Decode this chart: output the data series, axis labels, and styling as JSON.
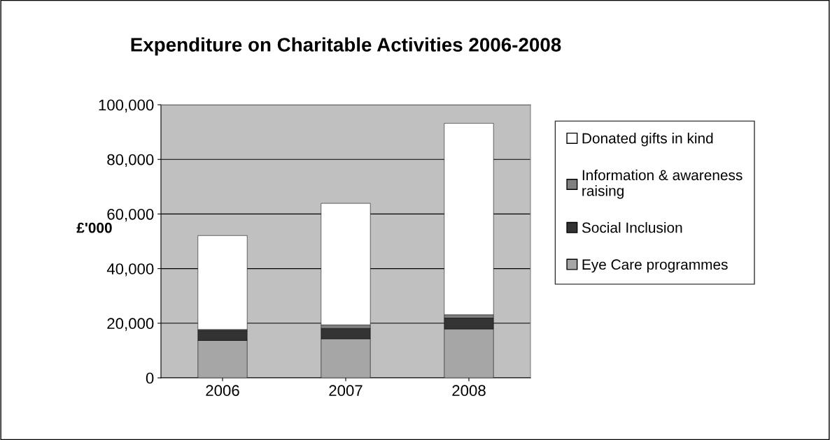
{
  "chart_data": {
    "type": "bar",
    "title": "Expenditure on Charitable Activities 2006-2008",
    "ylabel": "£'000",
    "categories": [
      "2006",
      "2007",
      "2008"
    ],
    "stacked": true,
    "ylim": [
      0,
      100000
    ],
    "yticks": [
      {
        "value": 0,
        "label": "0"
      },
      {
        "value": 20000,
        "label": "20,000"
      },
      {
        "value": 40000,
        "label": "40,000"
      },
      {
        "value": 60000,
        "label": "60,000"
      },
      {
        "value": 80000,
        "label": "80,000"
      },
      {
        "value": 100000,
        "label": "100,000"
      }
    ],
    "grid": "y",
    "legend": "right",
    "series": [
      {
        "name": "Eye Care programmes",
        "color": "#a6a6a6",
        "values": [
          13700,
          14300,
          17900
        ]
      },
      {
        "name": "Social Inclusion",
        "color": "#333333",
        "values": [
          3600,
          3800,
          4000
        ]
      },
      {
        "name": "Information & awareness raising",
        "color": "#808080",
        "values": [
          400,
          1300,
          1200
        ]
      },
      {
        "name": "Donated gifts in kind",
        "color": "#ffffff",
        "values": [
          34400,
          44500,
          70100
        ]
      }
    ]
  }
}
